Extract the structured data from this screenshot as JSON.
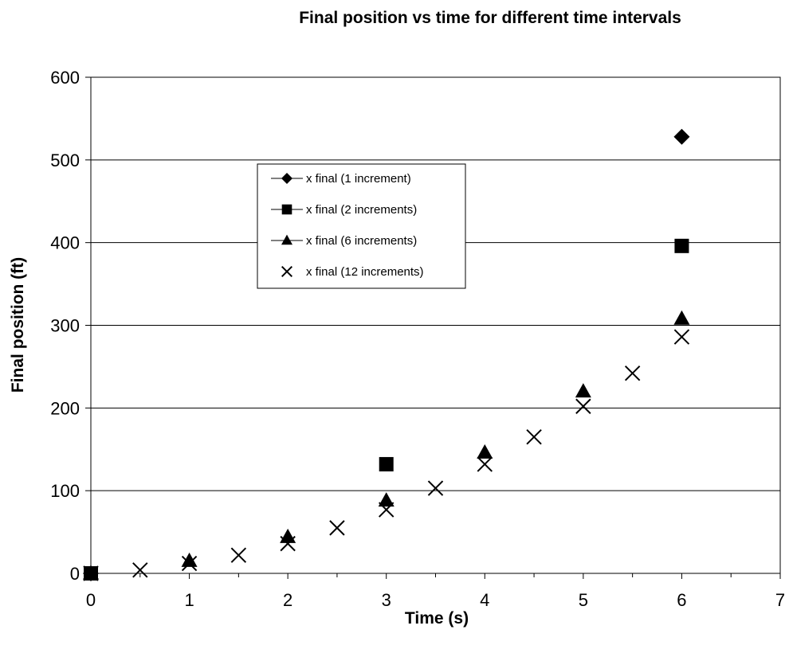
{
  "chart_data": {
    "type": "scatter",
    "title": "Final position vs time for different time intervals",
    "xlabel": "Time (s)",
    "ylabel": "Final position (ft)",
    "xlim": [
      0,
      7
    ],
    "ylim": [
      0,
      600
    ],
    "x_ticks": [
      0,
      1,
      2,
      3,
      4,
      5,
      6,
      7
    ],
    "y_ticks": [
      0,
      100,
      200,
      300,
      400,
      500,
      600
    ],
    "grid": "horizontal",
    "legend_position": "upper-left-center",
    "series": [
      {
        "name": "x final (1 increment)",
        "marker": "diamond",
        "color": "#000000",
        "points": [
          [
            0,
            0
          ],
          [
            6,
            528
          ]
        ]
      },
      {
        "name": "x final (2 increments)",
        "marker": "square",
        "color": "#000000",
        "points": [
          [
            0,
            0
          ],
          [
            3,
            132
          ],
          [
            6,
            396
          ]
        ]
      },
      {
        "name": "x final (6 increments)",
        "marker": "triangle",
        "color": "#000000",
        "points": [
          [
            0,
            0
          ],
          [
            1,
            15
          ],
          [
            2,
            44
          ],
          [
            3,
            88
          ],
          [
            4,
            146
          ],
          [
            5,
            220
          ],
          [
            6,
            308
          ]
        ]
      },
      {
        "name": "x final (12 increments)",
        "marker": "x",
        "color": "#000000",
        "points": [
          [
            0,
            0
          ],
          [
            0.5,
            4
          ],
          [
            1,
            12
          ],
          [
            1.5,
            22
          ],
          [
            2,
            36
          ],
          [
            2.5,
            55
          ],
          [
            3,
            77
          ],
          [
            3.5,
            103
          ],
          [
            4,
            132
          ],
          [
            4.5,
            165
          ],
          [
            5,
            202
          ],
          [
            5.5,
            242
          ],
          [
            6,
            286
          ]
        ]
      }
    ]
  }
}
